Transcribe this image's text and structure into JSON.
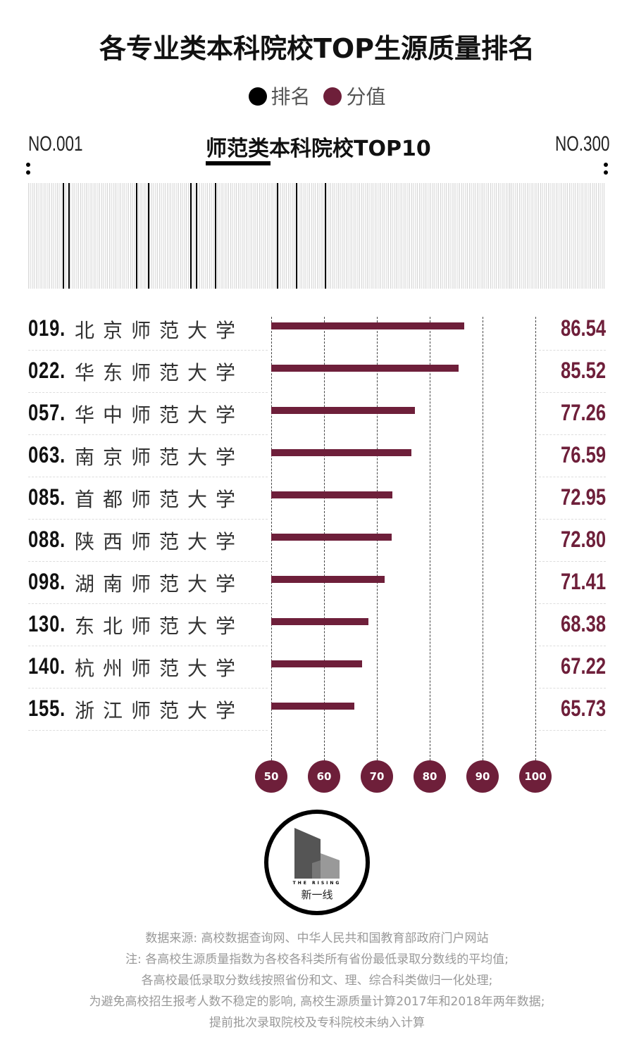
{
  "title": "各专业类本科院校TOP生源质量排名",
  "legend": [
    {
      "label": "排名",
      "color": "#000000"
    },
    {
      "label": "分值",
      "color": "#6e1f3a"
    }
  ],
  "subtitle": "师范类本科院校TOP10",
  "range_start": "NO.001",
  "range_end": "NO.300",
  "chart_data": {
    "type": "bar",
    "title": "师范类本科院校TOP10",
    "rank_range": [
      1,
      300
    ],
    "categories": [
      "北京师范大学",
      "华东师范大学",
      "华中师范大学",
      "南京师范大学",
      "首都师范大学",
      "陕西师范大学",
      "湖南师范大学",
      "东北师范大学",
      "杭州师范大学",
      "浙江师范大学"
    ],
    "ranks": [
      "019.",
      "022.",
      "057.",
      "063.",
      "085.",
      "088.",
      "098.",
      "130.",
      "140.",
      "155."
    ],
    "rank_values": [
      19,
      22,
      57,
      63,
      85,
      88,
      98,
      130,
      140,
      155
    ],
    "values": [
      86.54,
      85.52,
      77.26,
      76.59,
      72.95,
      72.8,
      71.41,
      68.38,
      67.22,
      65.73
    ],
    "value_labels": [
      "86.54",
      "85.52",
      "77.26",
      "76.59",
      "72.95",
      "72.80",
      "71.41",
      "68.38",
      "67.22",
      "65.73"
    ],
    "xlim": [
      50,
      100
    ],
    "xticks": [
      "50",
      "60",
      "70",
      "80",
      "90",
      "100"
    ],
    "bar_color": "#6e1f3a"
  },
  "logo": {
    "text_en": "THE RISING",
    "text_cn": "新一线"
  },
  "footer": [
    "数据来源: 高校数据查询网、中华人民共和国教育部政府门户网站",
    "注: 各高校生源质量指数为各校各科类所有省份最低录取分数线的平均值;",
    "各高校最低录取分数线按照省份和文、理、综合科类做归一化处理;",
    "为避免高校招生报考人数不稳定的影响, 高校生源质量计算2017年和2018年两年数据;",
    "提前批次录取院校及专科院校未纳入计算"
  ]
}
